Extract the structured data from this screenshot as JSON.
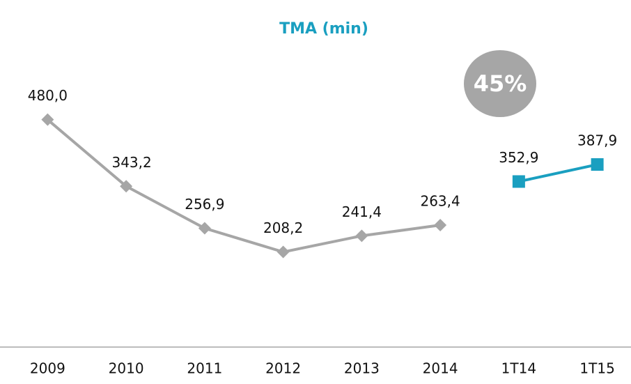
{
  "chart_data": {
    "type": "line",
    "title": "TMA (min)",
    "categories": [
      "2009",
      "2010",
      "2011",
      "2012",
      "2013",
      "2014",
      "1T14",
      "1T15"
    ],
    "series": [
      {
        "color": "#a6a6a6",
        "marker": "diamond",
        "values": [
          480.0,
          343.2,
          256.9,
          208.2,
          241.4,
          263.4,
          null,
          null
        ],
        "value_labels": [
          "480,0",
          "343,2",
          "256,9",
          "208,2",
          "241,4",
          "263,4",
          null,
          null
        ]
      },
      {
        "color": "#1a9fc0",
        "marker": "square",
        "values": [
          null,
          null,
          null,
          null,
          null,
          null,
          352.9,
          387.9
        ],
        "value_labels": [
          null,
          null,
          null,
          null,
          null,
          null,
          "352,9",
          "387,9"
        ]
      }
    ],
    "ylim": [
      0,
      700
    ],
    "annotations": [
      {
        "text": "45%",
        "color": "#a6a6a6"
      }
    ]
  }
}
